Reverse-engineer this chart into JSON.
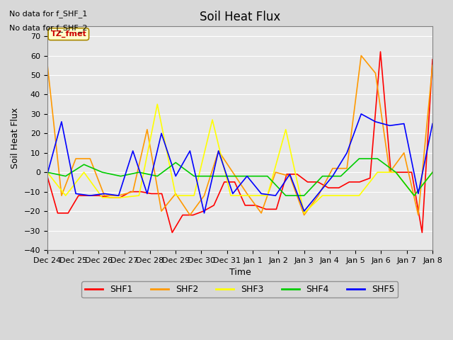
{
  "title": "Soil Heat Flux",
  "ylabel": "Soil Heat Flux",
  "xlabel": "Time",
  "note1": "No data for f_SHF_1",
  "note2": "No data for f_SHF_2",
  "tz_label": "TZ_fmet",
  "ylim": [
    -40,
    75
  ],
  "yticks": [
    -40,
    -30,
    -20,
    -10,
    0,
    10,
    20,
    30,
    40,
    50,
    60,
    70
  ],
  "series_colors": {
    "SHF1": "#ff0000",
    "SHF2": "#ff9900",
    "SHF3": "#ffff00",
    "SHF4": "#00cc00",
    "SHF5": "#0000ff"
  },
  "legend_colors": [
    "#ff0000",
    "#ff9900",
    "#ffff00",
    "#00cc00",
    "#0000ff"
  ],
  "legend_labels": [
    "SHF1",
    "SHF2",
    "SHF3",
    "SHF4",
    "SHF5"
  ],
  "x_tick_labels": [
    "Dec 24",
    "Dec 25",
    "Dec 26",
    "Dec 27",
    "Dec 28",
    "Dec 29",
    "Dec 30",
    "Dec 31",
    "Jan 1",
    "Jan 2",
    "Jan 3",
    "Jan 4",
    "Jan 5",
    "Jan 6",
    "Jan 7",
    "Jan 8"
  ],
  "shf1_y": [
    -2,
    -21,
    -21,
    -12,
    -12,
    -12,
    -13,
    -13,
    -10,
    -10,
    -11,
    -11,
    -31,
    -22,
    -22,
    -20,
    -17,
    -5,
    -5,
    -17,
    -17,
    -19,
    -19,
    -1,
    -1,
    -5,
    -5,
    -8,
    -8,
    -5,
    -5,
    -3,
    62,
    0,
    0,
    0,
    -31,
    58
  ],
  "shf2_y": [
    56,
    -12,
    7,
    7,
    -12,
    -12,
    -10,
    22,
    -20,
    -11,
    -22,
    -12,
    11,
    0,
    -11,
    -21,
    0,
    -2,
    -22,
    -12,
    2,
    2,
    60,
    51,
    0,
    10,
    -22,
    55
  ],
  "shf3_y": [
    0,
    -12,
    0,
    -13,
    -13,
    -12,
    35,
    -12,
    -12,
    27,
    -12,
    -12,
    -12,
    22,
    -21,
    -12,
    -12,
    -12,
    0,
    0,
    -12,
    0
  ],
  "shf4_y": [
    0,
    -2,
    4,
    0,
    -2,
    0,
    -2,
    5,
    -2,
    -2,
    -2,
    -2,
    -2,
    -12,
    -12,
    -2,
    -2,
    7,
    7,
    0,
    -12,
    0
  ],
  "shf5_y": [
    -1,
    26,
    -11,
    -12,
    -11,
    -12,
    11,
    -11,
    20,
    -2,
    11,
    -21,
    11,
    -11,
    -2,
    -11,
    -12,
    -1,
    -20,
    -11,
    -2,
    10,
    30,
    26,
    24,
    25,
    -11,
    25
  ]
}
